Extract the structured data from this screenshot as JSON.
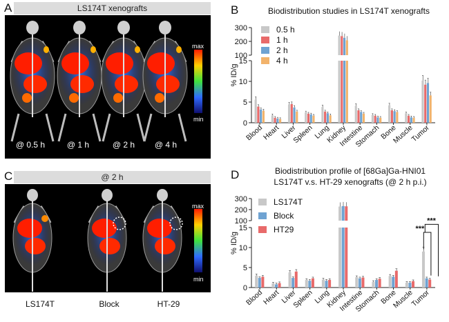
{
  "panel_a": {
    "letter": "A",
    "header": "LS174T xenografts",
    "timepoints": [
      "@ 0.5 h",
      "@ 1 h",
      "@ 2 h",
      "@ 4 h"
    ],
    "colorbar": {
      "max": "max",
      "min": "min"
    }
  },
  "panel_c": {
    "letter": "C",
    "header": "@ 2 h",
    "groups": [
      "LS174T",
      "Block",
      "HT-29"
    ],
    "colorbar": {
      "max": "max",
      "min": "min"
    }
  },
  "chart_data": [
    {
      "panel": "B",
      "type": "bar",
      "title": "Biodistribution studies in LS174T xenografts",
      "ylabel": "% ID/g",
      "categories": [
        "Blood",
        "Heart",
        "Liver",
        "Spleen",
        "Lung",
        "Kidney",
        "Intestine",
        "Stomach",
        "Bone",
        "Muscle",
        "Tumor"
      ],
      "axis_break": {
        "lower_ylim": [
          0,
          15
        ],
        "upper_ylim": [
          100,
          300
        ],
        "lower_ticks": [
          0,
          5,
          10,
          15
        ],
        "upper_ticks": [
          100,
          200,
          300
        ]
      },
      "series": [
        {
          "name": "0.5 h",
          "color": "#c8c8c8",
          "values": [
            5.6,
            1.8,
            4.4,
            2.5,
            3.8,
            242,
            4.1,
            1.9,
            4.2,
            2.3,
            10.2
          ]
        },
        {
          "name": "1 h",
          "color": "#e86a6a",
          "values": [
            3.9,
            1.2,
            4.5,
            2.2,
            2.7,
            238,
            3.0,
            1.7,
            3.0,
            1.7,
            9.2
          ]
        },
        {
          "name": "2 h",
          "color": "#6fa3d2",
          "values": [
            3.2,
            1.0,
            3.7,
            2.0,
            2.3,
            226,
            2.6,
            1.3,
            2.8,
            1.3,
            9.6
          ]
        },
        {
          "name": "4 h",
          "color": "#f2b36b",
          "values": [
            2.9,
            0.9,
            2.7,
            1.7,
            1.8,
            208,
            2.2,
            1.2,
            2.6,
            1.2,
            6.6
          ]
        }
      ]
    },
    {
      "panel": "D",
      "type": "bar",
      "title": "Biodistribution profile of [68Ga]Ga-HNI01",
      "subtitle": "LS174T v.s. HT-29 xenografts (@ 2 h p.i.)",
      "ylabel": "% ID/g",
      "categories": [
        "Blood",
        "Heart",
        "Liver",
        "Spleen",
        "Lung",
        "Kidney",
        "Intestine",
        "Stomach",
        "Bone",
        "Muscle",
        "Tumor"
      ],
      "axis_break": {
        "lower_ylim": [
          0,
          15
        ],
        "upper_ylim": [
          100,
          300
        ],
        "lower_ticks": [
          0,
          5,
          10,
          15
        ],
        "upper_ticks": [
          100,
          200,
          300
        ]
      },
      "series": [
        {
          "name": "LS174T",
          "color": "#c8c8c8",
          "values": [
            3.0,
            1.0,
            3.8,
            1.9,
            2.0,
            228,
            2.6,
            1.4,
            2.9,
            1.2,
            9.0
          ]
        },
        {
          "name": "Block",
          "color": "#6fa3d2",
          "values": [
            2.4,
            0.8,
            2.4,
            1.7,
            1.7,
            232,
            2.3,
            1.9,
            2.7,
            1.2,
            2.3
          ]
        },
        {
          "name": "HT29",
          "color": "#e86a6a",
          "values": [
            2.7,
            1.1,
            4.0,
            2.3,
            1.9,
            230,
            2.5,
            2.2,
            4.2,
            1.6,
            2.0
          ]
        }
      ],
      "significance": [
        "***",
        "***"
      ]
    }
  ],
  "panel_letters": {
    "b": "B",
    "d": "D"
  }
}
